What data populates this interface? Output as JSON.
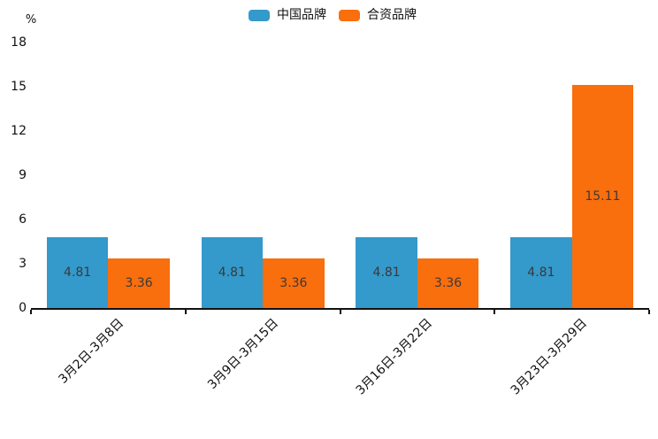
{
  "chart_data": {
    "type": "bar",
    "title": "",
    "unit_label": "%",
    "categories": [
      "3月2日-3月8日",
      "3月9日-3月15日",
      "3月16日-3月22日",
      "3月23日-3月29日"
    ],
    "series": [
      {
        "name": "中国品牌",
        "color": "#3499cb",
        "values": [
          4.81,
          4.81,
          4.81,
          4.81
        ]
      },
      {
        "name": "合资品牌",
        "color": "#f96e0d",
        "values": [
          3.36,
          3.36,
          3.36,
          15.11
        ]
      }
    ],
    "yticks": [
      0,
      3,
      6,
      9,
      12,
      15,
      18
    ],
    "ylim": [
      0,
      18
    ],
    "grid": false,
    "legend_position": "top-center",
    "bar_labels_shown": true,
    "bar_label_color": "#3a3a3a",
    "axis_color": "#111111",
    "xtick_label_rotation_deg": 45
  }
}
